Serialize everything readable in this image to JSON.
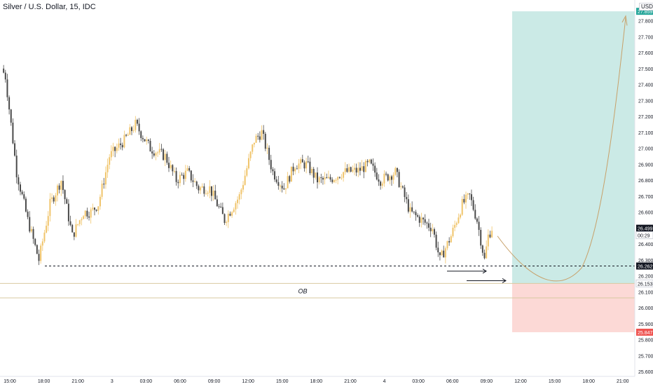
{
  "title": "Silver / U.S. Dollar, 15, IDC",
  "currency_label": "USD",
  "colors": {
    "up": "#f0c46a",
    "down": "#4a4a4a",
    "target_zone": "#cbeae6",
    "stop_zone": "#fcd9d6",
    "ob_line": "#d9c9a0",
    "arrow_path": "#c7a069",
    "target_badge": "#26a69a",
    "stop_badge": "#ef5350",
    "dark_badge": "#131722"
  },
  "chart_data": {
    "type": "candlestick",
    "y_axis": {
      "min": 25.57,
      "max": 27.93,
      "ticks": [
        25.6,
        25.7,
        25.8,
        25.9,
        26.0,
        26.1,
        26.2,
        26.3,
        26.4,
        26.5,
        26.6,
        26.7,
        26.8,
        26.9,
        27.0,
        27.1,
        27.2,
        27.3,
        27.4,
        27.5,
        27.6,
        27.7,
        27.8
      ],
      "tick_labels": [
        "25.600",
        "25.700",
        "25.800",
        "25.900",
        "26.000",
        "26.100",
        "26.200",
        "26.300",
        "26.400",
        "26.500",
        "26.600",
        "26.700",
        "26.800",
        "26.900",
        "27.000",
        "27.100",
        "27.200",
        "27.300",
        "27.400",
        "27.500",
        "27.600",
        "27.700",
        "27.800"
      ]
    },
    "x_axis": {
      "tick_labels": [
        "15:00",
        "18:00",
        "21:00",
        "3",
        "03:00",
        "06:00",
        "09:00",
        "12:00",
        "15:00",
        "18:00",
        "21:00",
        "4",
        "03:00",
        "06:00",
        "09:00",
        "12:00",
        "15:00",
        "18:00",
        "21:00"
      ]
    },
    "price_labels": [
      {
        "text": "27.859",
        "value": 27.859,
        "style": "target"
      },
      {
        "text": "26.499",
        "value": 26.499,
        "style": "dark"
      },
      {
        "text": "00:29",
        "value": 26.455,
        "style": "light"
      },
      {
        "text": "26.262",
        "value": 26.262,
        "style": "dark"
      },
      {
        "text": "26.153",
        "value": 26.153,
        "style": "light"
      },
      {
        "text": "25.847",
        "value": 25.847,
        "style": "stop"
      }
    ],
    "ob_label": "OB",
    "levels": {
      "entry": 26.153,
      "target": 27.859,
      "stop": 25.847,
      "ob_top": 26.153,
      "ob_bottom": 26.062,
      "dashed": 26.262
    },
    "anchors": [
      [
        0,
        27.5
      ],
      [
        2,
        27.45
      ],
      [
        8,
        26.85
      ],
      [
        14,
        26.55
      ],
      [
        20,
        26.3
      ],
      [
        26,
        26.65
      ],
      [
        32,
        26.8
      ],
      [
        38,
        26.45
      ],
      [
        44,
        26.6
      ],
      [
        48,
        26.6
      ],
      [
        52,
        26.65
      ],
      [
        58,
        26.95
      ],
      [
        66,
        27.05
      ],
      [
        72,
        27.15
      ],
      [
        80,
        27.0
      ],
      [
        88,
        26.95
      ],
      [
        94,
        26.8
      ],
      [
        100,
        26.85
      ],
      [
        106,
        26.75
      ],
      [
        112,
        26.75
      ],
      [
        120,
        26.55
      ],
      [
        128,
        26.7
      ],
      [
        136,
        27.05
      ],
      [
        140,
        27.1
      ],
      [
        146,
        26.85
      ],
      [
        152,
        26.75
      ],
      [
        158,
        26.9
      ],
      [
        164,
        26.9
      ],
      [
        170,
        26.8
      ],
      [
        176,
        26.8
      ],
      [
        184,
        26.85
      ],
      [
        192,
        26.86
      ],
      [
        198,
        26.9
      ],
      [
        204,
        26.8
      ],
      [
        212,
        26.85
      ],
      [
        220,
        26.6
      ],
      [
        226,
        26.55
      ],
      [
        232,
        26.5
      ],
      [
        236,
        26.3
      ],
      [
        242,
        26.45
      ],
      [
        248,
        26.65
      ],
      [
        252,
        26.7
      ],
      [
        256,
        26.55
      ],
      [
        260,
        26.3
      ],
      [
        262,
        26.45
      ],
      [
        264,
        26.5
      ]
    ]
  }
}
